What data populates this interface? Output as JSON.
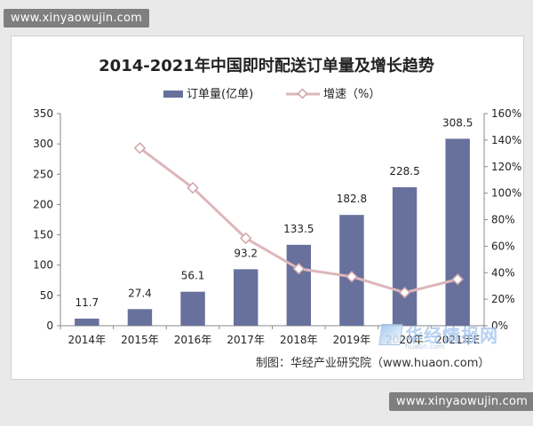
{
  "watermarks": {
    "top": "www.xinyaowujin.com",
    "bottom": "www.xinyaowujin.com"
  },
  "credit": "制图：华经产业研究院（www.huaon.com）",
  "logo": {
    "text": "华经情报网",
    "sub": "huaon.com"
  },
  "colors": {
    "bar": "#68719c",
    "line": "#ddb6bb",
    "marker_fill": "#ffffff",
    "marker_stroke": "#d3a3aa",
    "axis": "#888888",
    "text": "#222222"
  },
  "chart_data": {
    "type": "bar",
    "title": "2014-2021年中国即时配送订单量及增长趋势",
    "categories": [
      "2014年",
      "2015年",
      "2016年",
      "2017年",
      "2018年",
      "2019年",
      "2020年",
      "2021年E"
    ],
    "series": [
      {
        "name": "订单量(亿单)",
        "type": "bar",
        "axis": "left",
        "values": [
          11.7,
          27.4,
          56.1,
          93.2,
          133.5,
          182.8,
          228.5,
          308.5
        ]
      },
      {
        "name": "增速（%）",
        "type": "line",
        "axis": "right",
        "values": [
          null,
          134,
          104,
          66,
          43,
          37,
          25,
          35
        ]
      }
    ],
    "data_labels": [
      "11.7",
      "27.4",
      "56.1",
      "93.2",
      "133.5",
      "182.8",
      "228.5",
      "308.5"
    ],
    "y_left": {
      "ylim": [
        0,
        350
      ],
      "ticks": [
        "0",
        "50",
        "100",
        "150",
        "200",
        "250",
        "300",
        "350"
      ]
    },
    "y_right": {
      "ylim": [
        0,
        160
      ],
      "ticks": [
        "0%",
        "20%",
        "40%",
        "60%",
        "80%",
        "100%",
        "120%",
        "140%",
        "160%"
      ]
    },
    "legend_position": "top-center",
    "grid": false
  }
}
